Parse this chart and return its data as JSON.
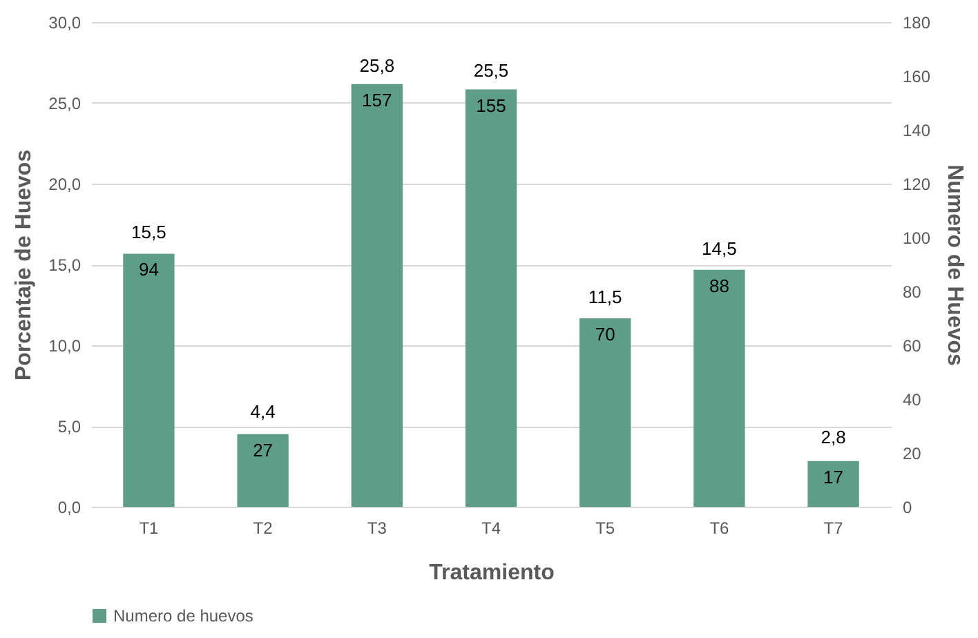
{
  "chart_data": {
    "type": "bar",
    "xlabel": "Tratamiento",
    "ylabel": "Porcentaje de Huevos",
    "y2label": "Numero de Huevos",
    "categories": [
      "T1",
      "T2",
      "T3",
      "T4",
      "T5",
      "T6",
      "T7"
    ],
    "series": [
      {
        "name": "Numero de huevos",
        "color": "#5e9e89",
        "axis": "y2",
        "values": [
          94,
          27,
          157,
          155,
          70,
          88,
          17
        ],
        "value_labels": [
          "94",
          "27",
          "157",
          "155",
          "70",
          "88",
          "17"
        ]
      }
    ],
    "annotations": [
      {
        "text": "15,5",
        "x": "T1",
        "y": 15.5
      },
      {
        "text": "4,4",
        "x": "T2",
        "y": 4.4
      },
      {
        "text": "25,8",
        "x": "T3",
        "y": 25.8
      },
      {
        "text": "25,5",
        "x": "T4",
        "y": 25.5
      },
      {
        "text": "11,5",
        "x": "T5",
        "y": 11.5
      },
      {
        "text": "14,5",
        "x": "T6",
        "y": 14.5
      },
      {
        "text": "2,8",
        "x": "T7",
        "y": 2.8
      }
    ],
    "ylim": [
      0,
      30
    ],
    "yticks": [
      {
        "value": 0,
        "label": "0,0"
      },
      {
        "value": 5,
        "label": "5,0"
      },
      {
        "value": 10,
        "label": "10,0"
      },
      {
        "value": 15,
        "label": "15,0"
      },
      {
        "value": 20,
        "label": "20,0"
      },
      {
        "value": 25,
        "label": "25,0"
      },
      {
        "value": 30,
        "label": "30,0"
      }
    ],
    "y2lim": [
      0,
      180
    ],
    "y2ticks": [
      0,
      20,
      40,
      60,
      80,
      100,
      120,
      140,
      160,
      180
    ],
    "grid": "y",
    "legend": "bottom"
  }
}
